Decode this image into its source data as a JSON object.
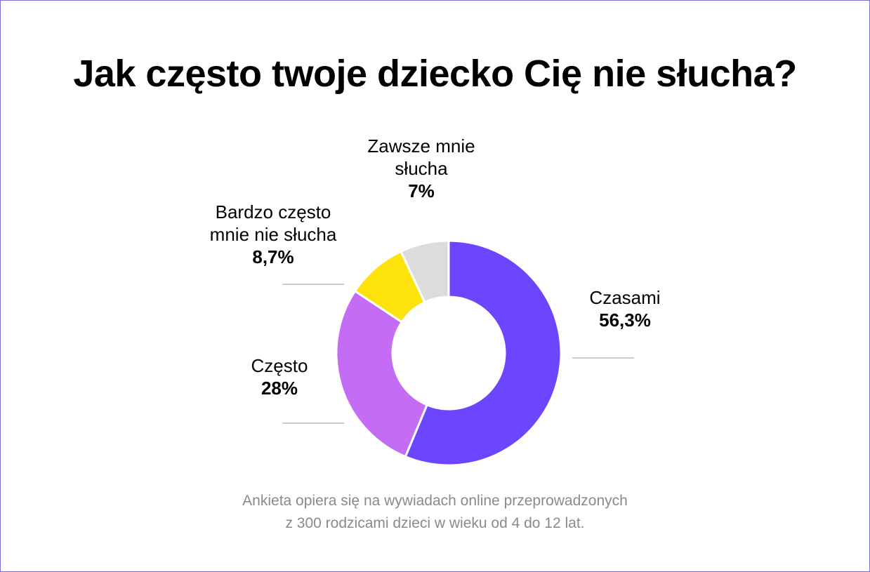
{
  "title": "Jak często twoje dziecko Cię nie słucha?",
  "footnote": {
    "line1": "Ankieta opiera się na wywiadach online przeprowadzonych",
    "line2": "z 300 rodzicami dzieci w wieku od 4 do 12 lat."
  },
  "chart_data": {
    "type": "pie",
    "donut": true,
    "title": "Jak często twoje dziecko Cię nie słucha?",
    "slices": [
      {
        "name_lines": [
          "Czasami"
        ],
        "label": "Czasami",
        "value": 56.3,
        "value_label": "56,3%",
        "color": "#6c46ff"
      },
      {
        "name_lines": [
          "Często"
        ],
        "label": "Często",
        "value": 28,
        "value_label": "28%",
        "color": "#c56cf4"
      },
      {
        "name_lines": [
          "Bardzo często",
          "mnie nie słucha"
        ],
        "label": "Bardzo często mnie nie słucha",
        "value": 8.7,
        "value_label": "8,7%",
        "color": "#fde30b"
      },
      {
        "name_lines": [
          "Zawsze mnie",
          "słucha"
        ],
        "label": "Zawsze mnie słucha",
        "value": 7,
        "value_label": "7%",
        "color": "#dcdcdc"
      }
    ]
  }
}
